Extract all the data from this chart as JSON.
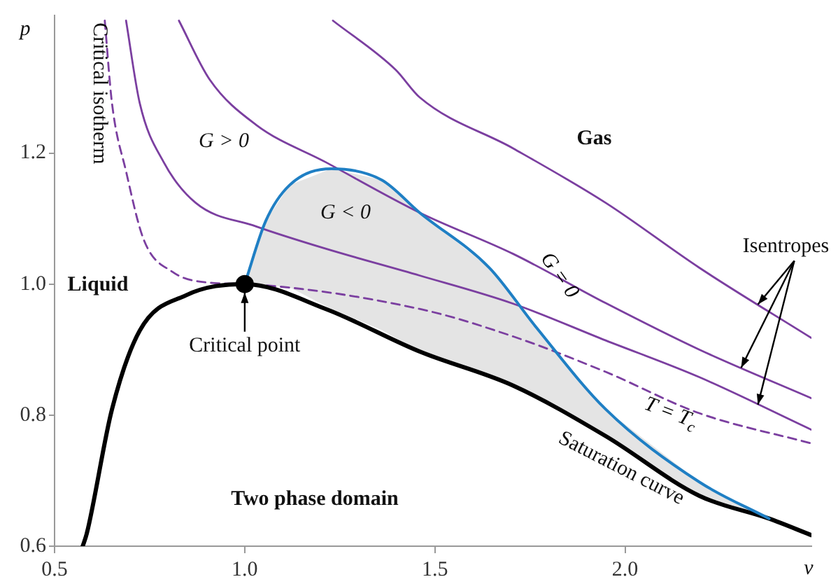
{
  "chart_data": {
    "type": "line",
    "xlabel": "v",
    "ylabel": "p",
    "xlim": [
      0.5,
      2.49
    ],
    "ylim": [
      0.6,
      1.41
    ],
    "xticks": [
      {
        "value": 0.5,
        "label": "0.5"
      },
      {
        "value": 1,
        "label": "1.0"
      },
      {
        "value": 1.5,
        "label": "1.5"
      },
      {
        "value": 2,
        "label": "2.0"
      }
    ],
    "yticks": [
      {
        "value": 0.6,
        "label": "0.6"
      },
      {
        "value": 0.8,
        "label": "0.8"
      },
      {
        "value": 1,
        "label": "1.0"
      },
      {
        "value": 1.2,
        "label": "1.2"
      }
    ],
    "grid": false,
    "legend": false,
    "marker": "none",
    "series": [
      {
        "name": "G = 0",
        "color": "#1f7fc4",
        "line_style": "solid",
        "x": [
          1.0,
          1.055,
          1.118,
          1.228,
          1.36,
          1.46,
          1.643,
          1.765,
          1.949,
          2.195,
          2.379
        ],
        "values": [
          1.0,
          1.096,
          1.151,
          1.176,
          1.159,
          1.109,
          1.025,
          0.935,
          0.809,
          0.698,
          0.642
        ],
        "lower": [
          1.0,
          0.999,
          0.995,
          0.962,
          0.93,
          0.897,
          0.86,
          0.83,
          0.768,
          0.677,
          0.642
        ],
        "upper": [
          1.0,
          1.096,
          1.151,
          1.176,
          1.159,
          1.109,
          1.025,
          0.935,
          0.809,
          0.698,
          0.642
        ]
      },
      {
        "color": "#000000",
        "line_style": "solid",
        "x": [
          0.574,
          0.585,
          0.651,
          0.724,
          0.846,
          1.0,
          1.213,
          1.46,
          1.706,
          1.949,
          2.195,
          2.379,
          2.489
        ],
        "values": [
          0.6,
          0.62,
          0.809,
          0.929,
          0.983,
          1.0,
          0.962,
          0.897,
          0.845,
          0.768,
          0.677,
          0.642,
          0.617
        ]
      },
      {
        "color": "#7b3fa0",
        "line_style": "solid",
        "x": [
          0.688,
          0.724,
          0.787,
          0.871,
          1.03,
          1.213,
          1.46,
          1.706,
          1.949,
          2.195,
          2.489
        ],
        "values": [
          1.402,
          1.276,
          1.186,
          1.124,
          1.088,
          1.054,
          1.013,
          0.97,
          0.914,
          0.858,
          0.778
        ]
      },
      {
        "color": "#7b3fa0",
        "line_style": "solid",
        "x": [
          0.827,
          0.908,
          1.03,
          1.213,
          1.46,
          1.706,
          1.949,
          2.195,
          2.489
        ],
        "values": [
          1.402,
          1.312,
          1.243,
          1.186,
          1.109,
          1.046,
          0.971,
          0.9,
          0.826
        ]
      },
      {
        "color": "#7b3fa0",
        "line_style": "solid",
        "x": [
          1.232,
          1.397,
          1.46,
          1.706,
          1.949,
          2.195,
          2.489
        ],
        "values": [
          1.402,
          1.327,
          1.285,
          1.207,
          1.124,
          1.025,
          0.918
        ]
      },
      {
        "name": "T = T$_{c}$",
        "color": "#7b3fa0",
        "line_style": "dashed",
        "x": [
          0.632,
          0.651,
          0.688,
          0.735,
          0.809,
          0.908,
          1.0,
          1.46,
          1.706,
          1.949,
          2.195,
          2.489
        ],
        "values": [
          1.402,
          1.276,
          1.172,
          1.067,
          1.019,
          1.002,
          1.0,
          0.962,
          0.92,
          0.866,
          0.803,
          0.757
        ]
      },
      {
        "type": "scatter",
        "marker": "circle",
        "color": "#000000",
        "x": [
          1.0
        ],
        "values": [
          1.0
        ]
      }
    ],
    "annotations": [
      {
        "text": "Critical point",
        "x": 1.0,
        "y": 1.0
      },
      {
        "text": "Isentropes",
        "x": 2.353,
        "y": 0.967
      },
      "G > 0",
      "G < 0",
      "Liquid",
      "Gas",
      "Two phase domain",
      "Critical isotherm",
      {
        "text": "Saturation curve",
        "x": 1.99,
        "y": 0.755
      }
    ]
  }
}
